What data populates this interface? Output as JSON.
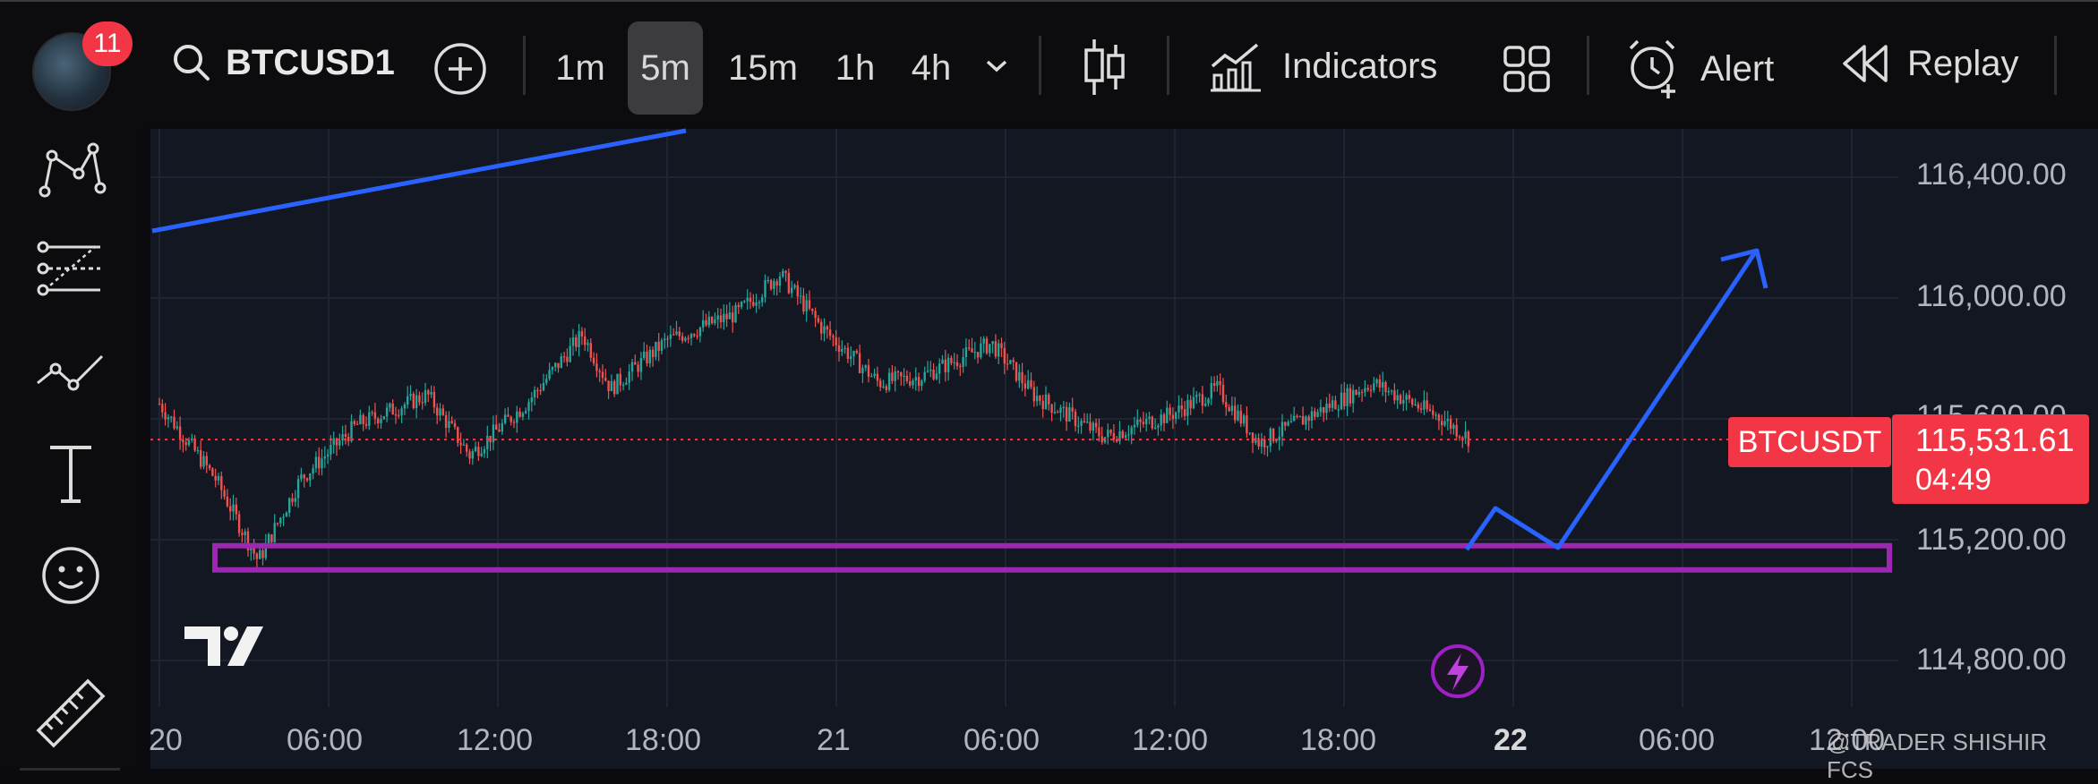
{
  "toolbar": {
    "notification_count": "11",
    "symbol": "BTCUSD1",
    "timeframes": [
      {
        "label": "1m",
        "active": false
      },
      {
        "label": "5m",
        "active": true
      },
      {
        "label": "15m",
        "active": false
      },
      {
        "label": "1h",
        "active": false
      },
      {
        "label": "4h",
        "active": false
      }
    ],
    "indicators_label": "Indicators",
    "alert_label": "Alert",
    "replay_label": "Replay"
  },
  "sidebar": {
    "tools": [
      "pattern-tool-icon",
      "fib-levels-icon",
      "trend-line-icon",
      "text-tool-icon",
      "emoji-icon",
      "ruler-icon"
    ]
  },
  "chart": {
    "symbol_tag": "BTCUSDT",
    "last_price": "115,531.61",
    "countdown": "04:49",
    "price_axis": [
      "116,400.00",
      "116,000.00",
      "115,600.00",
      "115,200.00",
      "114,800.00"
    ],
    "time_axis": [
      "20",
      "06:00",
      "12:00",
      "18:00",
      "21",
      "06:00",
      "12:00",
      "18:00",
      "22",
      "06:00",
      "12:00"
    ],
    "watermark": "@TRADER SHISHIR FCS",
    "colors": {
      "up": "#26a69a",
      "down": "#ef5350",
      "zone": "#9c27b0",
      "drawing": "#2962ff",
      "last_price": "#f23645"
    }
  },
  "chart_data": {
    "type": "candlestick",
    "title": "",
    "xlabel": "",
    "ylabel": "",
    "ylim": [
      114650,
      116500
    ],
    "x": [
      "20",
      "06:00",
      "12:00",
      "18:00",
      "21",
      "06:00",
      "12:00",
      "18:00",
      "22",
      "06:00",
      "12:00"
    ],
    "close_path": [
      [
        "20 00:00",
        115650
      ],
      [
        "20 02:00",
        115400
      ],
      [
        "20 03:30",
        115130
      ],
      [
        "20 05:00",
        115400
      ],
      [
        "20 07:00",
        115580
      ],
      [
        "20 09:30",
        115680
      ],
      [
        "20 11:00",
        115480
      ],
      [
        "20 13:00",
        115650
      ],
      [
        "20 15:00",
        115880
      ],
      [
        "20 16:00",
        115700
      ],
      [
        "20 18:00",
        115860
      ],
      [
        "20 20:30",
        115950
      ],
      [
        "20 22:00",
        116080
      ],
      [
        "20 23:30",
        115900
      ],
      [
        "21 01:30",
        115720
      ],
      [
        "21 03:00",
        115740
      ],
      [
        "21 05:30",
        115850
      ],
      [
        "21 07:00",
        115680
      ],
      [
        "21 09:30",
        115540
      ],
      [
        "21 12:00",
        115620
      ],
      [
        "21 13:30",
        115700
      ],
      [
        "21 15:00",
        115520
      ],
      [
        "21 17:00",
        115620
      ],
      [
        "21 19:00",
        115720
      ],
      [
        "21 21:30",
        115600
      ],
      [
        "21 22:30",
        115531.61
      ]
    ],
    "support_zone": {
      "upper": 115180,
      "lower": 115100
    },
    "last_price": 115531.61
  }
}
